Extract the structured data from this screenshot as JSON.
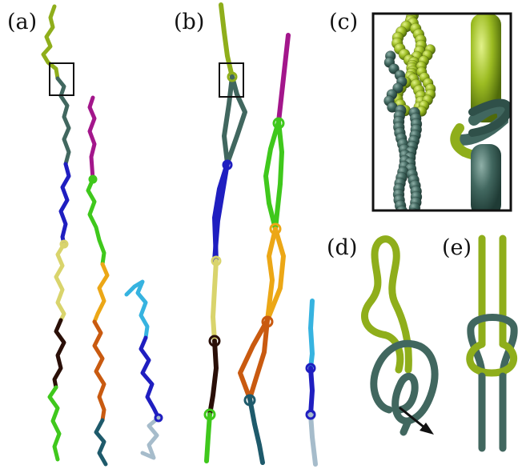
{
  "panels": {
    "a": {
      "label": "(a)"
    },
    "b": {
      "label": "(b)"
    },
    "c": {
      "label": "(c)"
    },
    "d": {
      "label": "(d)"
    },
    "e": {
      "label": "(e)"
    }
  },
  "colors": {
    "olive": "#8fae1b",
    "teal": "#41675f",
    "magenta": "#a3168b",
    "green": "#3fc81c",
    "blue": "#1f1ec0",
    "khaki": "#d9d46c",
    "brown_black": "#2a0f08",
    "orange": "#eca716",
    "rust": "#c95a10",
    "dark_teal": "#1e5a6b",
    "sky": "#36b3e0",
    "pale_blue": "#a6bccb",
    "inset_background": "#ffffff",
    "frame": "#111111"
  },
  "icons": {
    "arrow": "arrow-icon"
  }
}
